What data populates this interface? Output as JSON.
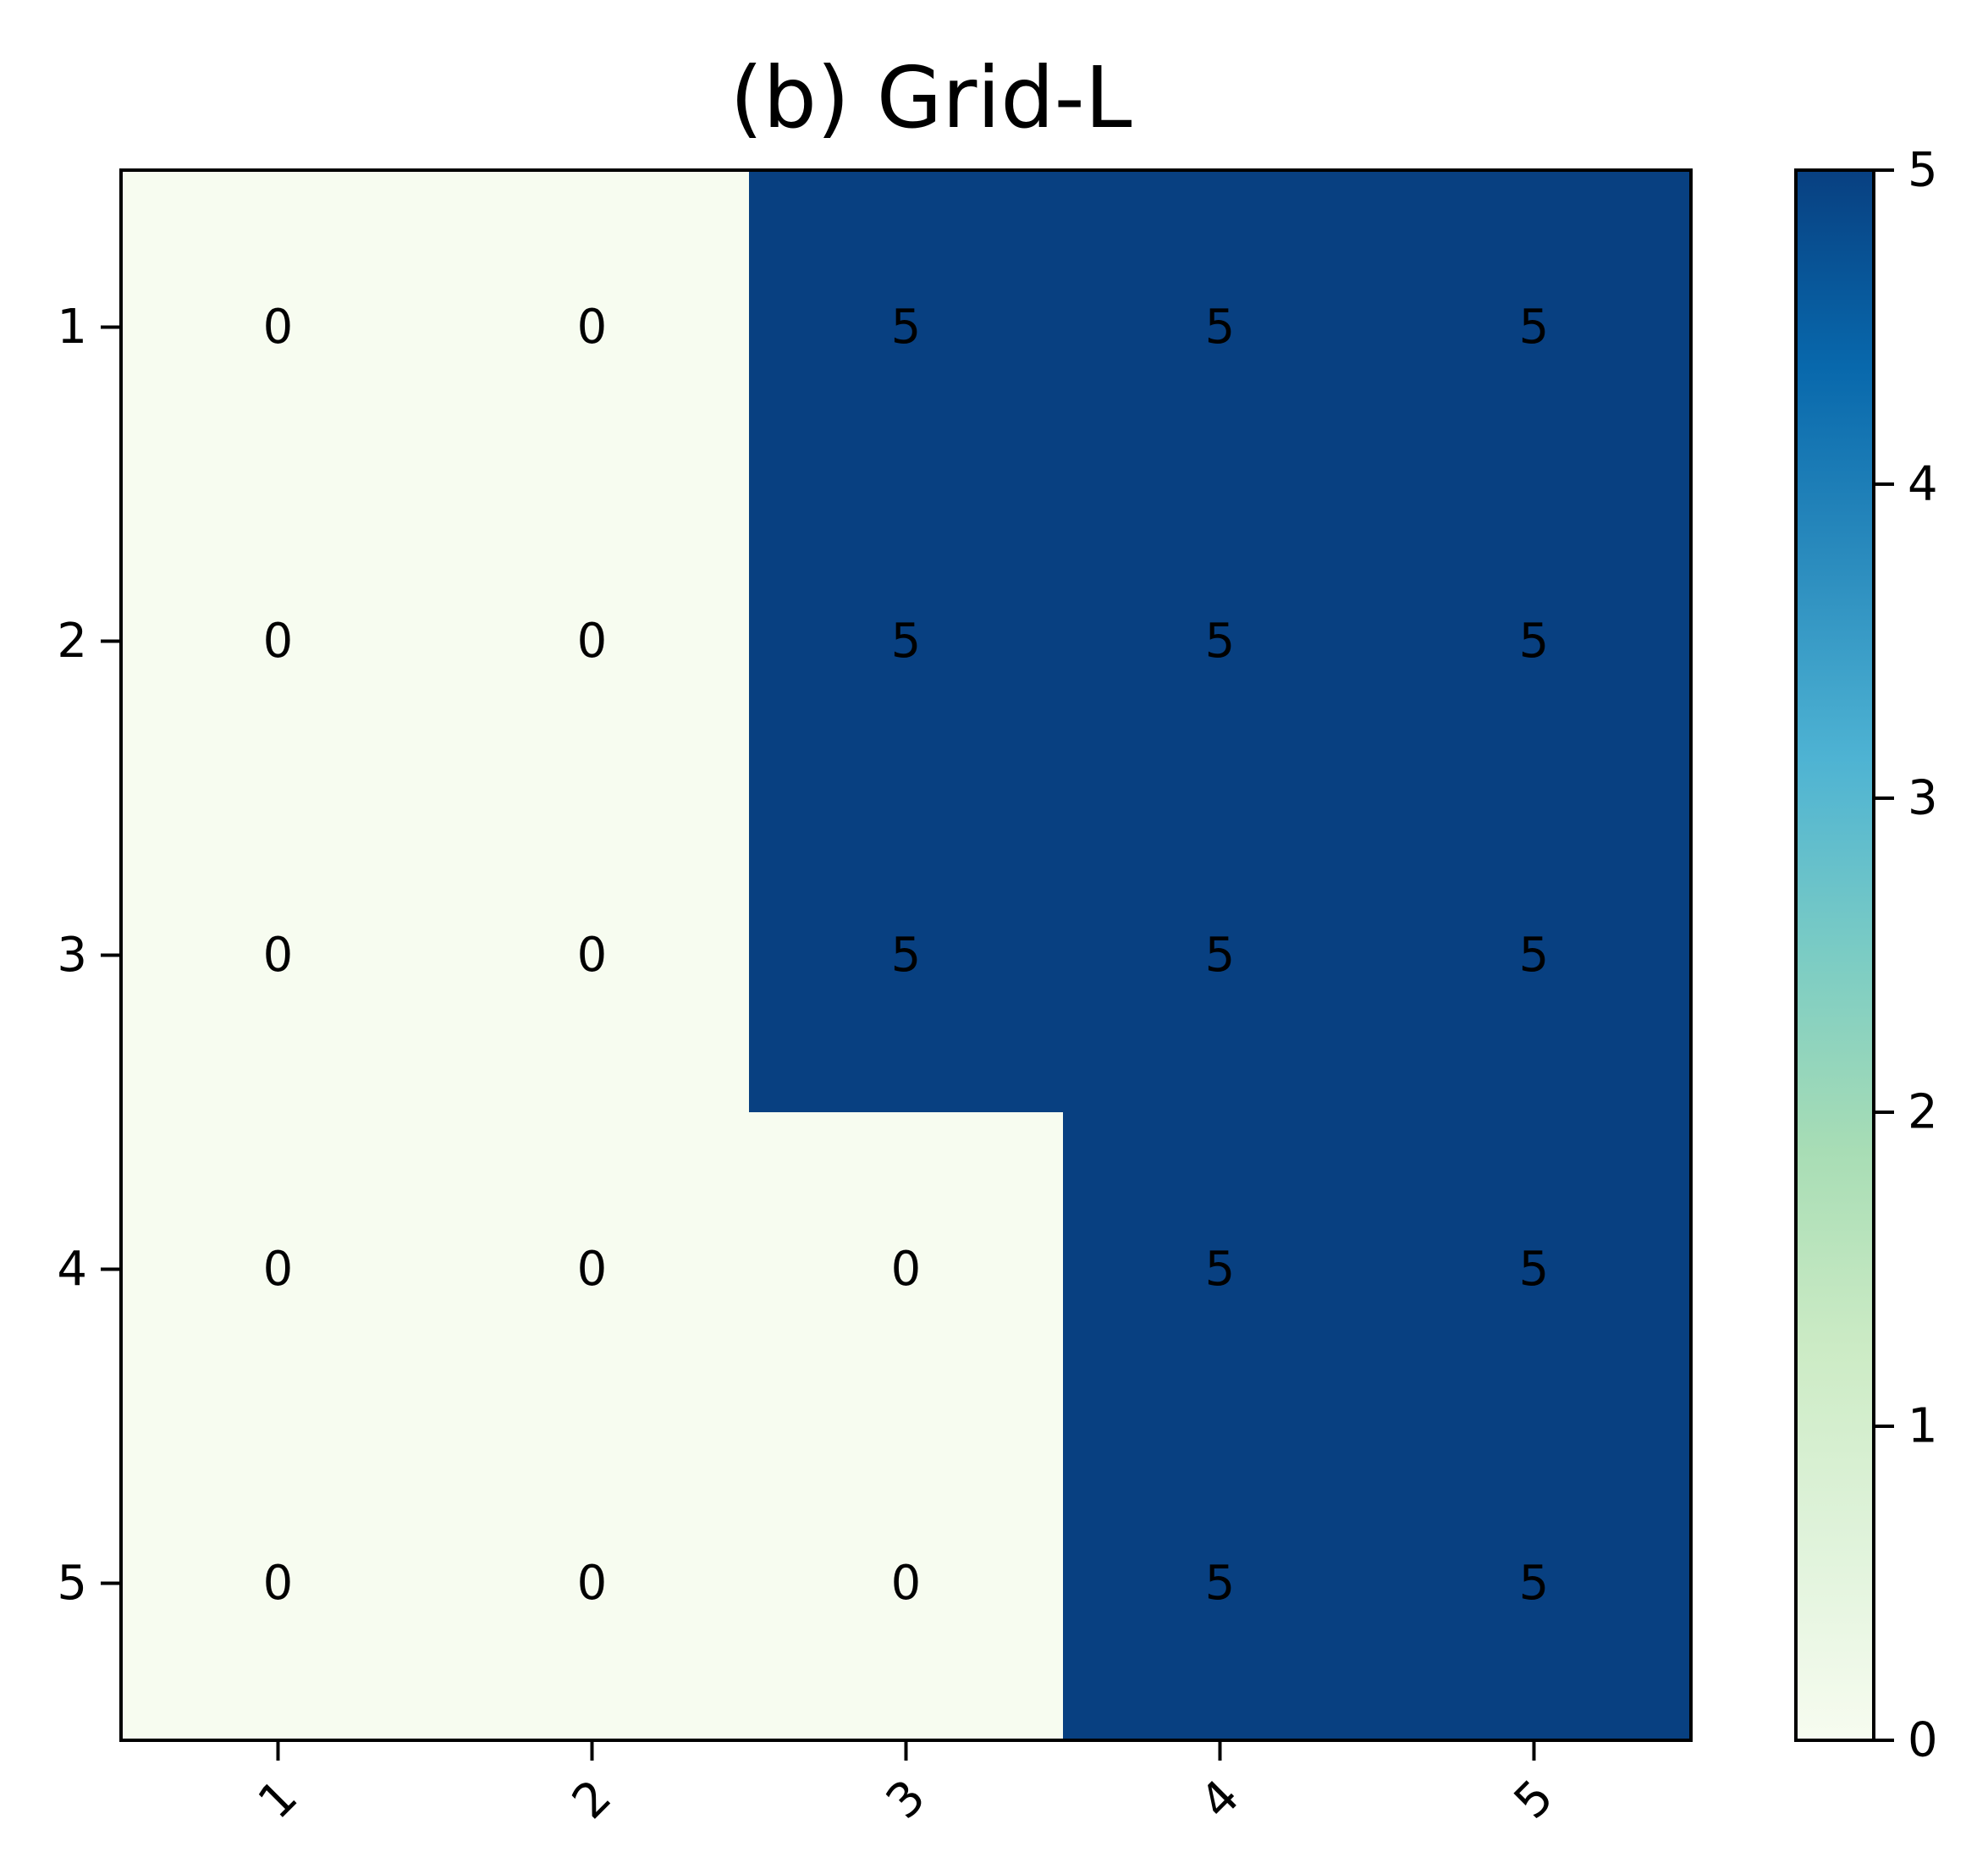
{
  "chart_data": {
    "type": "heatmap",
    "title": "(b) Grid-L",
    "xlabel": "",
    "ylabel": "",
    "x_tick_labels": [
      "1",
      "2",
      "3",
      "4",
      "5"
    ],
    "y_tick_labels": [
      "1",
      "2",
      "3",
      "4",
      "5"
    ],
    "matrix": [
      [
        0,
        0,
        5,
        5,
        5
      ],
      [
        0,
        0,
        5,
        5,
        5
      ],
      [
        0,
        0,
        5,
        5,
        5
      ],
      [
        0,
        0,
        0,
        5,
        5
      ],
      [
        0,
        0,
        0,
        5,
        5
      ]
    ],
    "value_range": [
      0,
      5
    ],
    "colorbar": {
      "ticks": [
        0,
        1,
        2,
        3,
        4,
        5
      ],
      "tick_labels": [
        "0",
        "1",
        "2",
        "3",
        "4",
        "5"
      ]
    },
    "colormap": "GnBu",
    "colorscale": [
      "#f7fcf0",
      "#e0f3db",
      "#ccebc5",
      "#a8ddb5",
      "#7bccc4",
      "#4eb3d3",
      "#2b8cbe",
      "#0868ac",
      "#084081"
    ],
    "grid": false,
    "x_tick_rotation_deg": 45
  }
}
